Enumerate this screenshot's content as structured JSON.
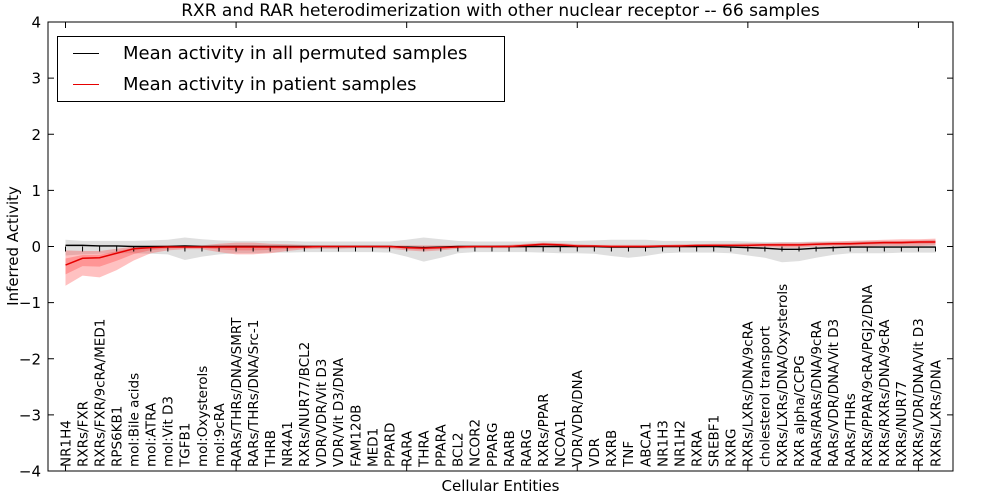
{
  "figure": {
    "title": "RXR and RAR heterodimerization with other nuclear receptor -- 66 samples",
    "xlabel": "Cellular Entities",
    "ylabel": "Inferred Activity",
    "legend": [
      "Mean activity in all permuted samples",
      "Mean activity in patient samples"
    ],
    "colors": {
      "permuted_line": "#000000",
      "patient_line": "#e60000",
      "permuted_band": "#c0c0c0",
      "patient_band": "#ff3333",
      "frame": "#000000"
    }
  },
  "chart_data": {
    "type": "line",
    "title": "RXR and RAR heterodimerization with other nuclear receptor -- 66 samples",
    "xlabel": "Cellular Entities",
    "ylabel": "Inferred Activity",
    "ylim": [
      -4,
      4
    ],
    "yticks": [
      -4,
      -3,
      -2,
      -1,
      0,
      1,
      2,
      3,
      4
    ],
    "x_major_tick_every": 10,
    "grid": false,
    "legend_position": "upper left",
    "categories": [
      "NR1H4",
      "RXRs/FXR",
      "RXRs/FXR/9cRA/MED1",
      "RPS6KB1",
      "mol:Bile acids",
      "mol:ATRA",
      "mol:Vit D3",
      "TGFB1",
      "mol:Oxysterols",
      "mol:9cRA",
      "RARs/THRs/DNA/SMRT",
      "RARs/THRs/DNA/Src-1",
      "THRB",
      "NR4A1",
      "RXRs/NUR77/BCL2",
      "VDR/VDR/Vit D3",
      "VDR/Vit D3/DNA",
      "FAM120B",
      "MED1",
      "PPARD",
      "RARA",
      "THRA",
      "PPARA",
      "BCL2",
      "NCOR2",
      "PPARG",
      "RARB",
      "RARG",
      "RXRs/PPAR",
      "NCOA1",
      "VDR/VDR/DNA",
      "VDR",
      "RXRB",
      "TNF",
      "ABCA1",
      "NR1H3",
      "NR1H2",
      "RXRA",
      "SREBF1",
      "RXRG",
      "RXRs/LXRs/DNA/9cRA",
      "cholesterol transport",
      "RXRs/LXRs/DNA/Oxysterols",
      "RXR alpha/CCPG",
      "RARs/RARs/DNA/9cRA",
      "RARs/VDR/DNA/Vit D3",
      "RARs/THRs",
      "RXRs/PPAR/9cRA/PGJ2/DNA",
      "RXRs/RXRs/DNA/9cRA",
      "RXRs/NUR77",
      "RXRs/VDR/DNA/Vit D3",
      "RXRs/LXRs/DNA"
    ],
    "series": [
      {
        "name": "Mean activity in all permuted samples",
        "color": "#000000",
        "band_color": "#c0c0c0",
        "values": [
          0.02,
          0.02,
          0.01,
          0.01,
          0,
          0,
          0,
          0.01,
          0,
          0,
          0,
          0,
          0,
          0,
          0,
          0,
          0,
          0,
          0,
          0,
          -0.01,
          -0.02,
          -0.01,
          0,
          0,
          0,
          0,
          0,
          0,
          0,
          0,
          0,
          -0.01,
          -0.01,
          -0.01,
          0,
          0,
          0,
          0,
          -0.01,
          -0.02,
          -0.03,
          -0.05,
          -0.05,
          -0.03,
          -0.02,
          -0.01,
          -0.01,
          -0.01,
          -0.01,
          -0.01,
          -0.01
        ],
        "band_upper": [
          0.12,
          0.1,
          0.1,
          0.1,
          0.1,
          0.11,
          0.12,
          0.16,
          0.13,
          0.11,
          0.1,
          0.1,
          0.1,
          0.1,
          0.09,
          0.09,
          0.09,
          0.09,
          0.09,
          0.09,
          0.12,
          0.16,
          0.13,
          0.1,
          0.09,
          0.09,
          0.09,
          0.09,
          0.1,
          0.1,
          0.1,
          0.11,
          0.12,
          0.12,
          0.12,
          0.1,
          0.1,
          0.1,
          0.1,
          0.1,
          0.09,
          0.08,
          0.08,
          0.08,
          0.09,
          0.09,
          0.09,
          0.1,
          0.1,
          0.1,
          0.11,
          0.12
        ],
        "band_lower": [
          -0.16,
          -0.14,
          -0.13,
          -0.12,
          -0.12,
          -0.13,
          -0.14,
          -0.24,
          -0.18,
          -0.14,
          -0.12,
          -0.12,
          -0.11,
          -0.11,
          -0.1,
          -0.1,
          -0.1,
          -0.1,
          -0.1,
          -0.11,
          -0.18,
          -0.27,
          -0.2,
          -0.12,
          -0.1,
          -0.1,
          -0.1,
          -0.1,
          -0.11,
          -0.12,
          -0.12,
          -0.13,
          -0.17,
          -0.2,
          -0.17,
          -0.12,
          -0.11,
          -0.11,
          -0.11,
          -0.12,
          -0.16,
          -0.2,
          -0.28,
          -0.26,
          -0.2,
          -0.15,
          -0.12,
          -0.12,
          -0.12,
          -0.11,
          -0.11,
          -0.11
        ]
      },
      {
        "name": "Mean activity in patient samples",
        "color": "#e60000",
        "band_color": "#ff3333",
        "values": [
          -0.33,
          -0.21,
          -0.2,
          -0.12,
          -0.04,
          -0.02,
          -0.01,
          -0.01,
          -0.01,
          -0.01,
          -0.01,
          -0.01,
          -0.01,
          -0.01,
          -0.01,
          0,
          0,
          0,
          0,
          0,
          -0.02,
          -0.03,
          -0.02,
          -0.01,
          0,
          0,
          0,
          0.02,
          0.04,
          0.03,
          0.01,
          0.01,
          0,
          0,
          0,
          0.01,
          0.01,
          0.02,
          0.02,
          0.02,
          0.02,
          0.03,
          0.03,
          0.03,
          0.04,
          0.05,
          0.05,
          0.06,
          0.07,
          0.07,
          0.08,
          0.08
        ],
        "band_upper": [
          -0.07,
          -0.08,
          -0.08,
          -0.04,
          0.0,
          0.01,
          0.02,
          0.02,
          0.02,
          0.05,
          0.07,
          0.07,
          0.05,
          0.04,
          0.03,
          0.02,
          0.02,
          0.02,
          0.02,
          0.02,
          0.02,
          0.02,
          0.02,
          0.02,
          0.02,
          0.02,
          0.03,
          0.05,
          0.07,
          0.06,
          0.04,
          0.03,
          0.03,
          0.03,
          0.03,
          0.03,
          0.04,
          0.04,
          0.05,
          0.05,
          0.06,
          0.06,
          0.07,
          0.07,
          0.08,
          0.09,
          0.1,
          0.11,
          0.12,
          0.13,
          0.13,
          0.14
        ],
        "band_lower": [
          -0.7,
          -0.52,
          -0.55,
          -0.42,
          -0.25,
          -0.12,
          -0.07,
          -0.05,
          -0.05,
          -0.1,
          -0.14,
          -0.14,
          -0.12,
          -0.08,
          -0.05,
          -0.04,
          -0.04,
          -0.03,
          -0.03,
          -0.04,
          -0.07,
          -0.09,
          -0.07,
          -0.04,
          -0.03,
          -0.03,
          -0.03,
          -0.02,
          -0.01,
          -0.01,
          -0.02,
          -0.02,
          -0.03,
          -0.03,
          -0.03,
          -0.02,
          -0.02,
          -0.02,
          -0.01,
          -0.01,
          -0.01,
          -0.01,
          -0.02,
          -0.02,
          0.0,
          0.0,
          0.0,
          0.0,
          0.01,
          0.01,
          0.01,
          0.02
        ]
      }
    ]
  }
}
